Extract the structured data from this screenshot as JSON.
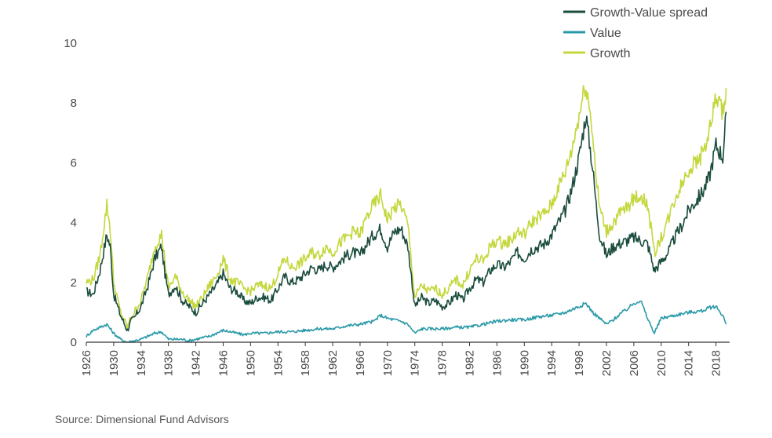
{
  "source_note": "Source: Dimensional Fund Advisors",
  "colors": {
    "growth_value_spread": "#1b4d3e",
    "value": "#2a9aa8",
    "growth": "#c4d73c",
    "axis": "#333333",
    "text": "#4a4a4a"
  },
  "chart_data": {
    "type": "line",
    "title": "",
    "xlabel": "",
    "ylabel": "",
    "xlim": [
      1926,
      2020
    ],
    "ylim": [
      0,
      10
    ],
    "grid": false,
    "legend_position": "top-right",
    "y_ticks": [
      0,
      2,
      4,
      6,
      8,
      10
    ],
    "y_tick_labels": [
      "0",
      "2",
      "4",
      "6",
      "8",
      "10"
    ],
    "x_ticks": [
      1926,
      1930,
      1934,
      1938,
      1942,
      1946,
      1950,
      1954,
      1958,
      1962,
      1966,
      1970,
      1974,
      1978,
      1982,
      1986,
      1990,
      1994,
      1998,
      2002,
      2006,
      2010,
      2014,
      2018
    ],
    "x_tick_labels": [
      "1926",
      "1930",
      "1934",
      "1938",
      "1942",
      "1946",
      "1950",
      "1954",
      "1958",
      "1962",
      "1966",
      "1970",
      "1974",
      "1978",
      "1982",
      "1986",
      "1990",
      "1994",
      "1998",
      "2002",
      "2006",
      "2010",
      "2014",
      "2018"
    ],
    "series": [
      {
        "name": "Growth-Value spread",
        "color": "#1b4d3e",
        "x": [
          1926,
          1927,
          1928,
          1929,
          1929.5,
          1930,
          1931,
          1932,
          1932.5,
          1933,
          1934,
          1935,
          1936,
          1937,
          1937.5,
          1938,
          1939,
          1940,
          1941,
          1942,
          1943,
          1944,
          1945,
          1946,
          1947,
          1948,
          1949,
          1950,
          1951,
          1952,
          1953,
          1954,
          1955,
          1956,
          1957,
          1958,
          1959,
          1960,
          1961,
          1962,
          1963,
          1964,
          1965,
          1966,
          1967,
          1968,
          1969,
          1970,
          1971,
          1972,
          1973,
          1974,
          1975,
          1976,
          1977,
          1978,
          1979,
          1980,
          1981,
          1982,
          1983,
          1984,
          1985,
          1986,
          1987,
          1988,
          1989,
          1990,
          1991,
          1992,
          1993,
          1994,
          1995,
          1996,
          1997,
          1998,
          1999,
          2000,
          2000.5,
          2001,
          2002,
          2003,
          2004,
          2005,
          2006,
          2007,
          2008,
          2009,
          2010,
          2011,
          2012,
          2013,
          2014,
          2015,
          2016,
          2017,
          2018,
          2019,
          2019.5
        ],
        "values": [
          1.7,
          1.6,
          2.4,
          3.6,
          3.2,
          1.6,
          0.9,
          0.4,
          0.7,
          0.8,
          1.2,
          1.9,
          2.8,
          3.2,
          2.3,
          1.6,
          1.9,
          1.4,
          1.2,
          1.0,
          1.3,
          1.6,
          1.9,
          2.3,
          1.8,
          1.7,
          1.4,
          1.3,
          1.5,
          1.5,
          1.4,
          1.8,
          2.2,
          2.0,
          2.1,
          2.3,
          2.5,
          2.4,
          2.6,
          2.5,
          2.7,
          2.9,
          3.0,
          2.9,
          3.3,
          3.6,
          3.8,
          3.2,
          3.7,
          3.8,
          3.2,
          1.2,
          1.5,
          1.3,
          1.4,
          1.2,
          1.3,
          1.6,
          1.4,
          1.8,
          2.1,
          2.0,
          2.4,
          2.6,
          2.5,
          2.7,
          3.0,
          2.8,
          3.1,
          3.2,
          3.3,
          3.6,
          4.0,
          4.4,
          5.2,
          6.2,
          7.6,
          5.8,
          4.6,
          3.6,
          2.9,
          3.2,
          3.3,
          3.4,
          3.5,
          3.4,
          3.3,
          2.4,
          2.7,
          3.0,
          3.5,
          3.9,
          4.4,
          4.7,
          5.0,
          5.5,
          6.6,
          6.2,
          7.7
        ]
      },
      {
        "name": "Value",
        "color": "#2a9aa8",
        "x": [
          1926,
          1927,
          1928,
          1929,
          1930,
          1931,
          1932,
          1933,
          1934,
          1935,
          1936,
          1937,
          1938,
          1939,
          1940,
          1941,
          1942,
          1943,
          1944,
          1945,
          1946,
          1947,
          1948,
          1949,
          1950,
          1952,
          1954,
          1956,
          1958,
          1960,
          1962,
          1964,
          1966,
          1968,
          1969,
          1970,
          1972,
          1973,
          1974,
          1975,
          1976,
          1978,
          1980,
          1982,
          1984,
          1986,
          1988,
          1990,
          1992,
          1994,
          1996,
          1998,
          1999,
          2000,
          2001,
          2002,
          2003,
          2004,
          2005,
          2006,
          2007,
          2008,
          2009,
          2010,
          2011,
          2012,
          2014,
          2016,
          2017,
          2018,
          2019,
          2019.5
        ],
        "values": [
          0.2,
          0.4,
          0.5,
          0.6,
          0.3,
          0.1,
          0.0,
          0.05,
          0.1,
          0.2,
          0.3,
          0.35,
          0.1,
          0.1,
          0.1,
          0.05,
          0.1,
          0.15,
          0.2,
          0.3,
          0.4,
          0.35,
          0.3,
          0.25,
          0.3,
          0.3,
          0.35,
          0.35,
          0.4,
          0.45,
          0.45,
          0.55,
          0.6,
          0.7,
          0.9,
          0.8,
          0.7,
          0.6,
          0.3,
          0.45,
          0.45,
          0.45,
          0.5,
          0.5,
          0.6,
          0.7,
          0.75,
          0.75,
          0.85,
          0.9,
          1.0,
          1.2,
          1.3,
          1.0,
          0.8,
          0.6,
          0.75,
          0.95,
          1.1,
          1.3,
          1.4,
          0.8,
          0.3,
          0.8,
          0.85,
          0.9,
          1.0,
          1.05,
          1.15,
          1.2,
          0.9,
          0.6
        ]
      },
      {
        "name": "Growth",
        "color": "#c4d73c",
        "x": [
          1926,
          1927,
          1928,
          1929,
          1929.5,
          1930,
          1931,
          1932,
          1932.5,
          1933,
          1934,
          1935,
          1936,
          1937,
          1937.5,
          1938,
          1939,
          1940,
          1941,
          1942,
          1943,
          1944,
          1945,
          1946,
          1947,
          1948,
          1949,
          1950,
          1951,
          1952,
          1953,
          1954,
          1955,
          1956,
          1957,
          1958,
          1959,
          1960,
          1961,
          1962,
          1963,
          1964,
          1965,
          1966,
          1967,
          1968,
          1969,
          1970,
          1971,
          1972,
          1973,
          1974,
          1975,
          1976,
          1977,
          1978,
          1979,
          1980,
          1981,
          1982,
          1983,
          1984,
          1985,
          1986,
          1987,
          1988,
          1989,
          1990,
          1991,
          1992,
          1993,
          1994,
          1995,
          1996,
          1997,
          1998,
          1999,
          2000,
          2000.5,
          2001,
          2002,
          2003,
          2004,
          2005,
          2006,
          2007,
          2008,
          2009,
          2010,
          2011,
          2012,
          2013,
          2014,
          2015,
          2016,
          2017,
          2018,
          2019,
          2019.5
        ],
        "values": [
          2.0,
          2.1,
          2.9,
          4.6,
          3.8,
          2.0,
          1.0,
          0.5,
          0.8,
          1.0,
          1.4,
          2.2,
          3.2,
          3.6,
          2.7,
          1.8,
          2.2,
          1.7,
          1.4,
          1.2,
          1.5,
          1.9,
          2.2,
          2.8,
          2.1,
          2.0,
          1.8,
          1.7,
          1.9,
          1.9,
          1.8,
          2.3,
          2.8,
          2.5,
          2.6,
          2.8,
          3.0,
          2.9,
          3.2,
          3.0,
          3.3,
          3.5,
          3.7,
          3.6,
          4.2,
          4.6,
          4.9,
          4.1,
          4.5,
          4.6,
          3.9,
          1.5,
          1.9,
          1.7,
          1.8,
          1.6,
          1.8,
          2.1,
          1.9,
          2.4,
          2.8,
          2.7,
          3.2,
          3.4,
          3.3,
          3.4,
          3.7,
          3.6,
          4.0,
          4.2,
          4.3,
          4.6,
          5.2,
          5.7,
          6.5,
          7.6,
          8.7,
          7.0,
          5.5,
          4.5,
          3.7,
          4.0,
          4.3,
          4.5,
          4.8,
          4.9,
          4.6,
          3.0,
          3.5,
          4.1,
          4.8,
          5.3,
          5.8,
          6.0,
          6.3,
          7.0,
          8.2,
          7.7,
          8.5
        ]
      }
    ]
  }
}
